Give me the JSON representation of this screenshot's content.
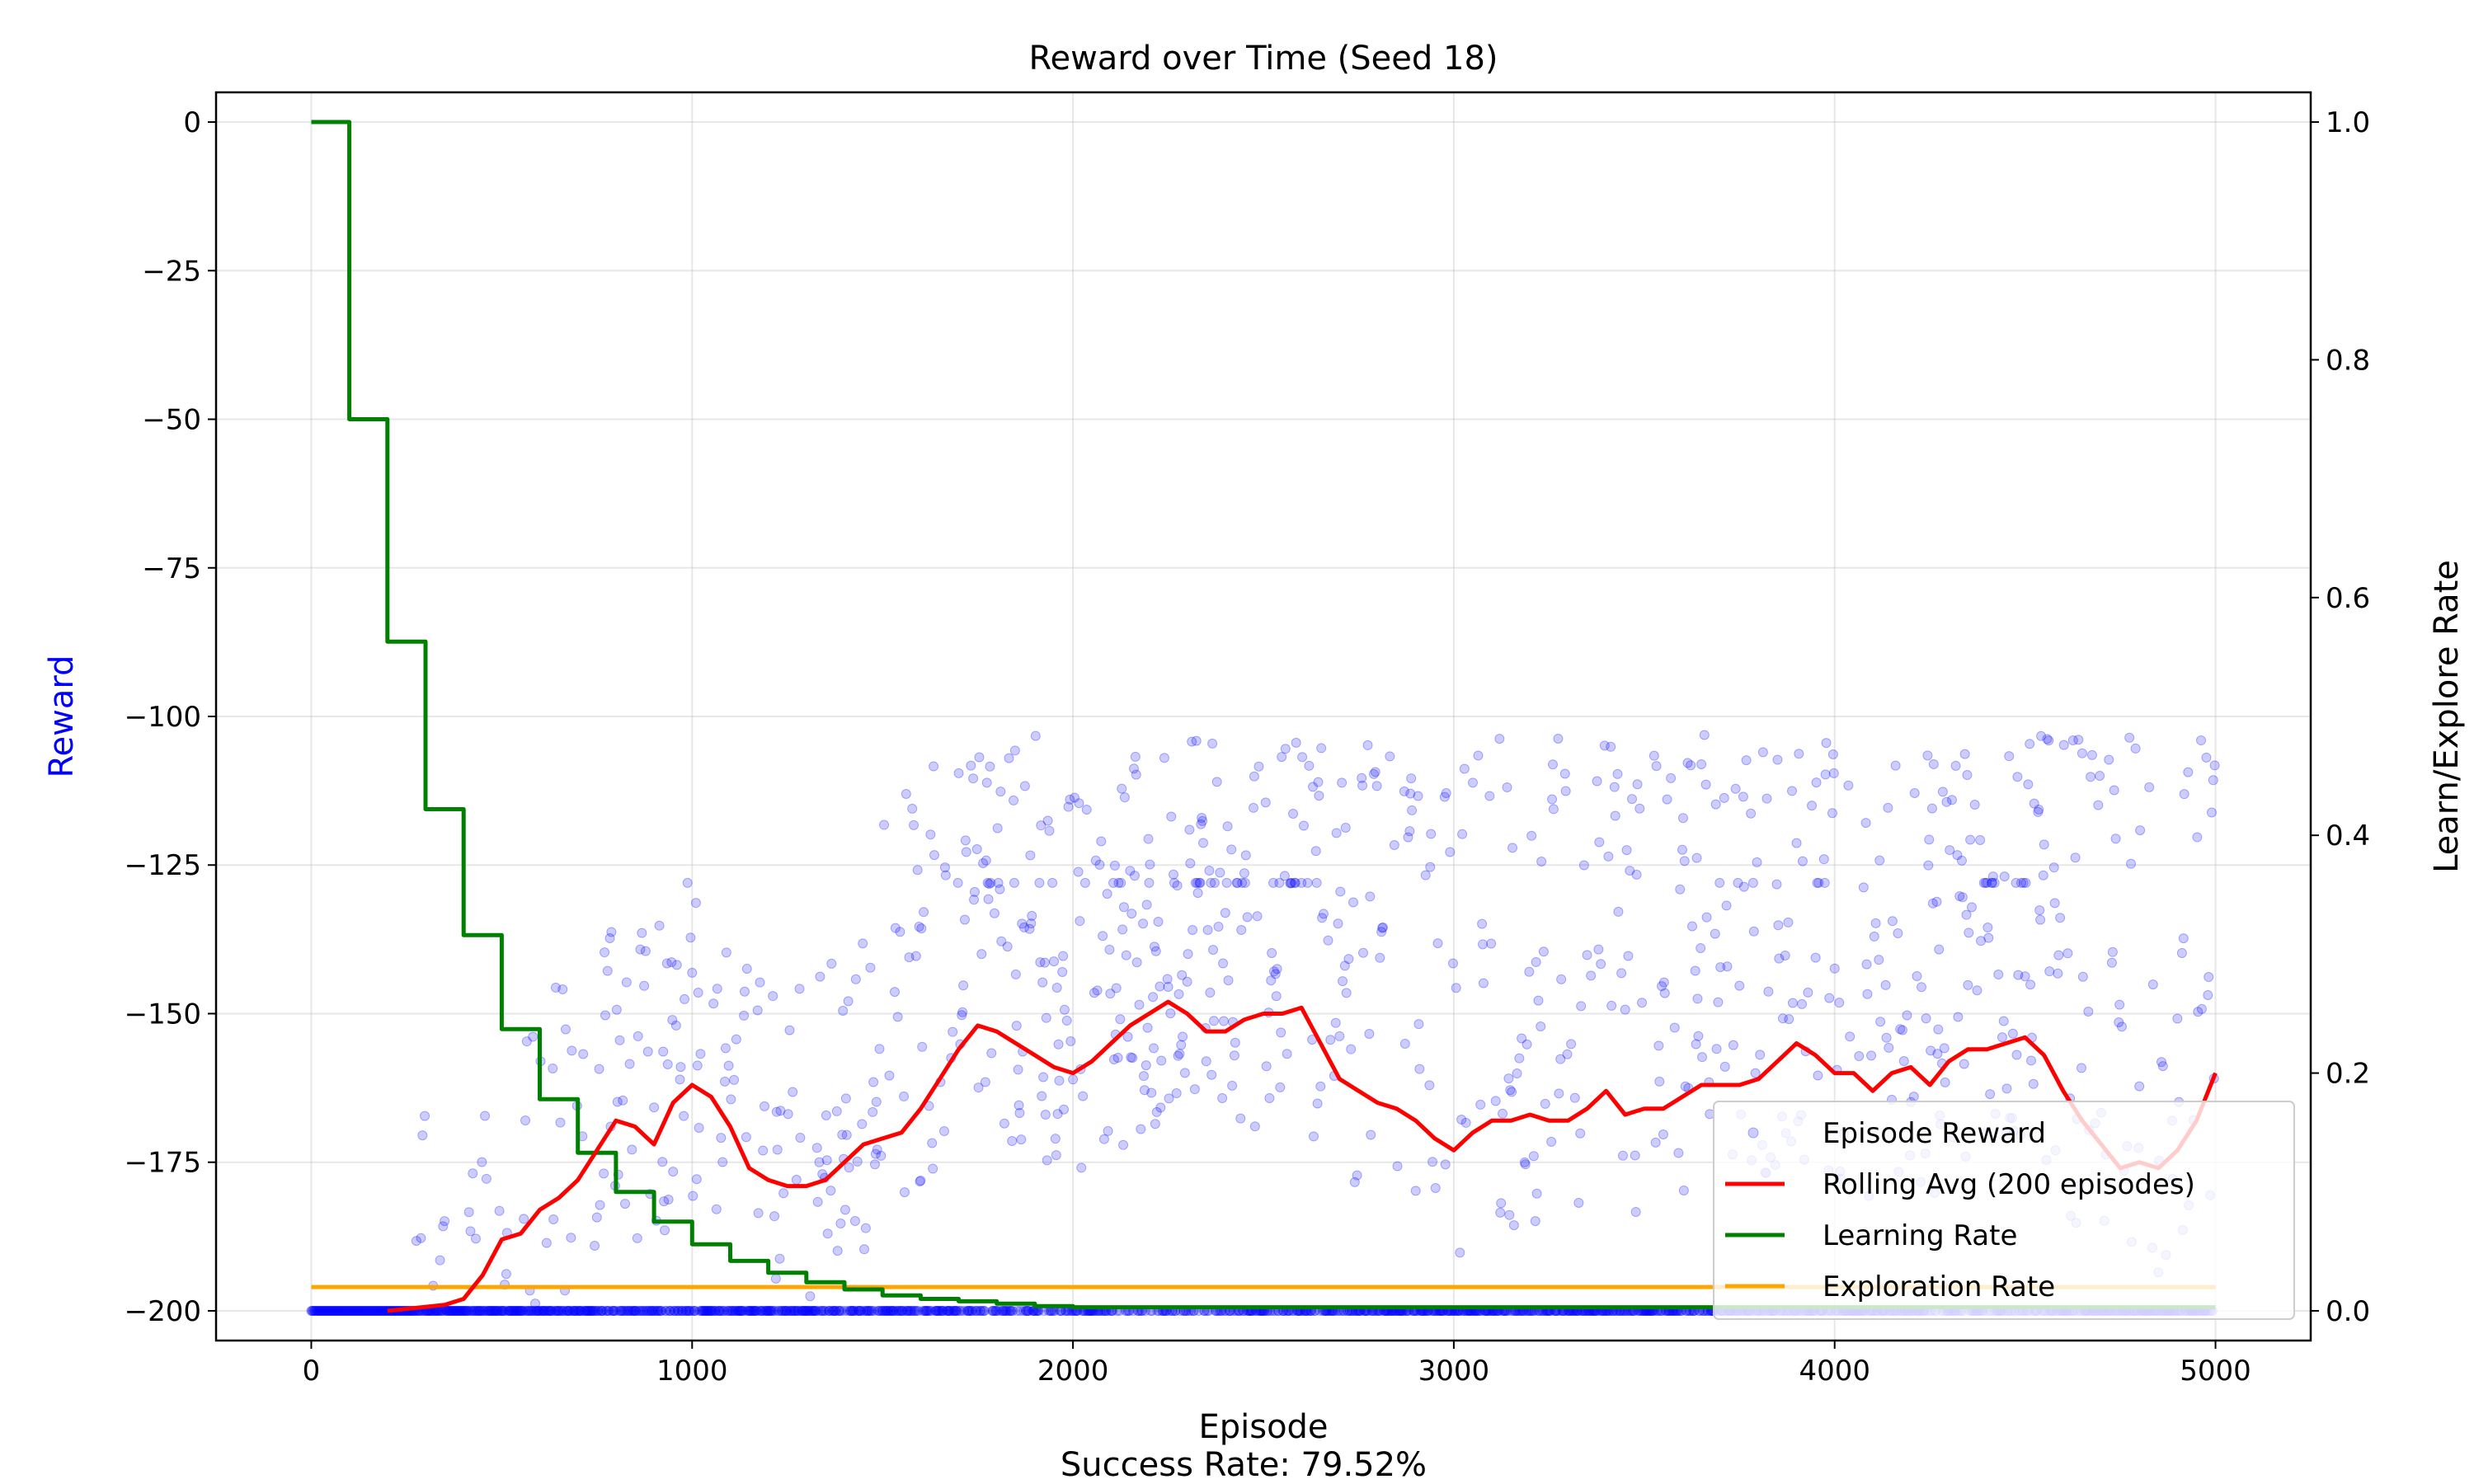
{
  "chart_data": {
    "type": "line",
    "title": "Reward over Time (Seed 18)",
    "xlabel": "Episode",
    "ylabel": "Reward",
    "y2label": "Learn/Explore Rate",
    "footer": "Success Rate: 79.52%",
    "xlim": [
      -250,
      5250
    ],
    "ylim": [
      -205,
      5
    ],
    "y2lim": [
      -0.025,
      1.025
    ],
    "xticks": [
      0,
      1000,
      2000,
      3000,
      4000,
      5000
    ],
    "yticks": [
      0,
      -25,
      -50,
      -75,
      -100,
      -125,
      -150,
      -175,
      -200
    ],
    "y2ticks": [
      0.0,
      0.2,
      0.4,
      0.6,
      0.8,
      1.0
    ],
    "grid": true,
    "legend_position": "lower-right",
    "colors": {
      "episode_reward": "#0000ff",
      "rolling_avg": "#ff0000",
      "learning_rate": "#008000",
      "exploration_rate": "#ffa500",
      "reward_axis_label": "#0000ff"
    },
    "legend": [
      {
        "label": "Episode Reward",
        "kind": "marker",
        "color": "#0000ff"
      },
      {
        "label": "Rolling Avg (200 episodes)",
        "kind": "line",
        "color": "#ff0000"
      },
      {
        "label": "Learning Rate",
        "kind": "line",
        "color": "#008000"
      },
      {
        "label": "Exploration Rate",
        "kind": "line",
        "color": "#ffa500"
      }
    ],
    "series": [
      {
        "name": "Rolling Avg (200 episodes)",
        "axis": "left",
        "x": [
          200,
          350,
          400,
          450,
          500,
          550,
          600,
          650,
          700,
          750,
          800,
          850,
          900,
          950,
          1000,
          1050,
          1100,
          1150,
          1200,
          1250,
          1300,
          1350,
          1400,
          1450,
          1500,
          1550,
          1600,
          1650,
          1700,
          1750,
          1800,
          1850,
          1900,
          1950,
          2000,
          2050,
          2100,
          2150,
          2200,
          2250,
          2300,
          2350,
          2400,
          2450,
          2500,
          2550,
          2600,
          2650,
          2700,
          2750,
          2800,
          2850,
          2900,
          2950,
          3000,
          3050,
          3100,
          3150,
          3200,
          3250,
          3300,
          3350,
          3400,
          3450,
          3500,
          3550,
          3600,
          3650,
          3700,
          3750,
          3800,
          3850,
          3900,
          3950,
          4000,
          4050,
          4100,
          4150,
          4200,
          4250,
          4300,
          4350,
          4400,
          4450,
          4500,
          4550,
          4600,
          4650,
          4700,
          4750,
          4800,
          4850,
          4900,
          4950,
          5000
        ],
        "y": [
          -200,
          -199,
          -198,
          -194,
          -188,
          -187,
          -183,
          -181,
          -178,
          -173,
          -168,
          -169,
          -172,
          -165,
          -162,
          -164,
          -169,
          -176,
          -178,
          -179,
          -179,
          -178,
          -175,
          -172,
          -171,
          -170,
          -166,
          -161,
          -156,
          -152,
          -153,
          -155,
          -157,
          -159,
          -160,
          -158,
          -155,
          -152,
          -150,
          -148,
          -150,
          -153,
          -153,
          -151,
          -150,
          -150,
          -149,
          -155,
          -161,
          -163,
          -165,
          -166,
          -168,
          -171,
          -173,
          -170,
          -168,
          -168,
          -167,
          -168,
          -168,
          -166,
          -163,
          -167,
          -166,
          -166,
          -164,
          -162,
          -162,
          -162,
          -161,
          -158,
          -155,
          -157,
          -160,
          -160,
          -163,
          -160,
          -159,
          -162,
          -158,
          -156,
          -156,
          -155,
          -154,
          -157,
          -163,
          -168,
          -172,
          -176,
          -175,
          -176,
          -173,
          -168,
          -160
        ]
      },
      {
        "name": "Learning Rate",
        "axis": "right",
        "x": [
          0,
          100,
          100,
          200,
          200,
          300,
          300,
          400,
          400,
          500,
          500,
          600,
          600,
          700,
          700,
          800,
          800,
          900,
          900,
          1000,
          1000,
          1100,
          1100,
          1200,
          1200,
          1300,
          1300,
          1400,
          1400,
          1500,
          1500,
          1600,
          1600,
          1700,
          1700,
          1800,
          1800,
          1900,
          1900,
          2000,
          2000,
          5000
        ],
        "y": [
          1.0,
          1.0,
          0.75,
          0.75,
          0.563,
          0.563,
          0.422,
          0.422,
          0.316,
          0.316,
          0.237,
          0.237,
          0.178,
          0.178,
          0.133,
          0.133,
          0.1,
          0.1,
          0.075,
          0.075,
          0.056,
          0.056,
          0.042,
          0.042,
          0.032,
          0.032,
          0.024,
          0.024,
          0.018,
          0.018,
          0.013,
          0.013,
          0.01,
          0.01,
          0.008,
          0.008,
          0.006,
          0.006,
          0.004,
          0.004,
          0.003,
          0.003
        ]
      },
      {
        "name": "Exploration Rate",
        "axis": "right",
        "x": [
          0,
          5000
        ],
        "y": [
          0.02,
          0.02
        ]
      }
    ]
  }
}
